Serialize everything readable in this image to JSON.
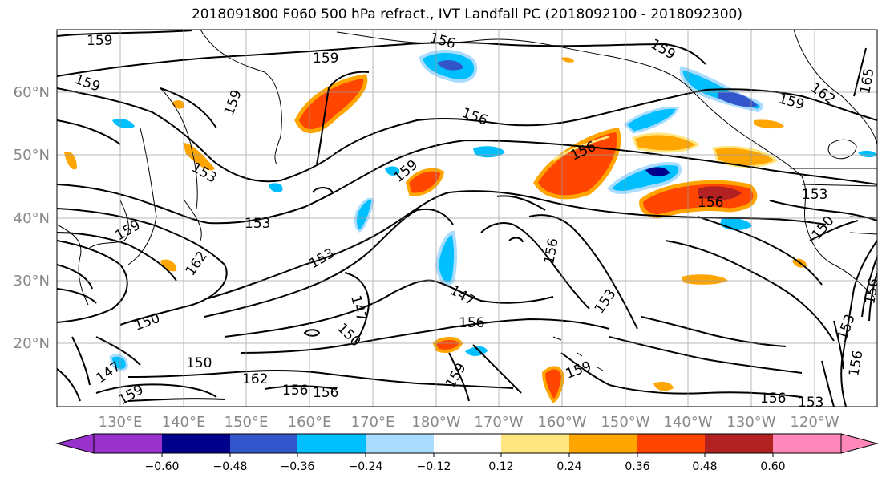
{
  "title": "2018091800 F060 500 hPa refract., IVT Landfall PC (2018092100 - 2018092300)",
  "lat_labels": [
    "60°N",
    "50°N",
    "40°N",
    "30°N",
    "20°N"
  ],
  "lon_labels": [
    "130°E",
    "140°E",
    "150°E",
    "160°E",
    "170°E",
    "180°W",
    "170°W",
    "160°W",
    "150°W",
    "140°W",
    "130°W",
    "120°W"
  ],
  "colorbar": {
    "tick_labels": [
      "−0.60",
      "−0.48",
      "−0.36",
      "−0.24",
      "−0.12",
      "0.12",
      "0.24",
      "0.36",
      "0.48",
      "0.60"
    ],
    "colors": [
      "#9932cc",
      "#00008b",
      "#3355cc",
      "#00bfff",
      "#aadcff",
      "#ffffff",
      "#ffe680",
      "#ffa500",
      "#ff4500",
      "#b22222",
      "#ff88bb"
    ]
  },
  "contour_labels": [
    "159",
    "156",
    "159",
    "159",
    "162",
    "165",
    "159",
    "159",
    "156",
    "159",
    "156",
    "156",
    "153",
    "150",
    "159",
    "153",
    "159",
    "162",
    "153",
    "156",
    "147",
    "156",
    "153",
    "147",
    "150",
    "150",
    "150",
    "156",
    "156",
    "159",
    "147",
    "153",
    "156",
    "159",
    "153",
    "162",
    "156",
    "153",
    "156",
    "159"
  ]
}
